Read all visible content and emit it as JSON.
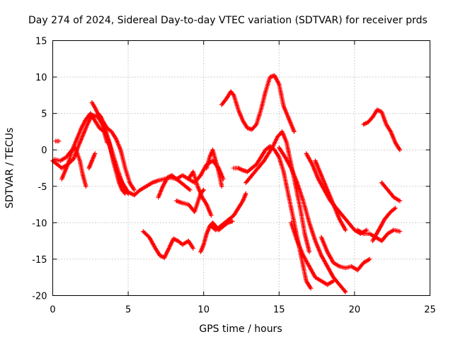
{
  "chart_data": {
    "type": "scatter",
    "title": "Day 274 of 2024, Sidereal Day-to-day VTEC variation (SDTVAR) for receiver prds",
    "xlabel": "GPS time / hours",
    "ylabel": "SDTVAR / TECUs",
    "xlim": [
      0,
      25
    ],
    "ylim": [
      -20,
      15
    ],
    "xticks": [
      0,
      5,
      10,
      15,
      20,
      25
    ],
    "yticks": [
      -20,
      -15,
      -10,
      -5,
      0,
      5,
      10,
      15
    ],
    "xtick_labels": [
      "0",
      "5",
      "10",
      "15",
      "20",
      "25"
    ],
    "ytick_labels": [
      "-20",
      "-15",
      "-10",
      "-5",
      "0",
      "5",
      "10",
      "15"
    ],
    "grid": true,
    "legend": "none",
    "marker": "+",
    "colors": {
      "series": "#ff0000"
    },
    "series": [
      {
        "x": [
          0.0,
          0.3,
          0.6,
          1.0,
          1.4,
          1.7,
          2.0,
          2.3,
          2.6,
          3.0,
          3.3,
          3.6,
          3.9,
          4.2,
          4.5,
          4.8,
          5.0
        ],
        "y": [
          -1.5,
          -2.0,
          -2.5,
          -2.0,
          -1.2,
          0.5,
          2.0,
          3.5,
          4.8,
          4.5,
          3.5,
          2.0,
          0.0,
          -2.0,
          -4.0,
          -5.5,
          -6.0
        ]
      },
      {
        "x": [
          0.1,
          0.5,
          0.9,
          1.2,
          1.5,
          1.8,
          2.0,
          2.2
        ],
        "y": [
          -1.3,
          -1.5,
          -1.0,
          -0.2,
          0.3,
          -1.5,
          -3.5,
          -5.0
        ]
      },
      {
        "x": [
          0.2,
          0.4
        ],
        "y": [
          1.2,
          1.2
        ]
      },
      {
        "x": [
          0.6,
          1.0,
          1.3,
          1.6,
          1.9,
          2.2,
          2.5,
          2.8,
          3.1,
          3.4,
          3.6
        ],
        "y": [
          -4.0,
          -2.0,
          0.0,
          1.5,
          3.0,
          4.2,
          5.0,
          4.0,
          3.0,
          2.5,
          1.0
        ]
      },
      {
        "x": [
          2.6,
          2.8,
          3.1,
          3.4,
          3.7,
          4.0,
          4.3,
          4.6,
          5.0,
          5.4,
          5.8,
          6.2,
          6.6,
          7.0,
          7.4,
          7.8,
          8.2,
          8.6,
          9.0,
          9.4,
          9.8,
          10.2,
          10.6,
          11.0,
          11.3
        ],
        "y": [
          6.5,
          5.8,
          4.5,
          3.0,
          1.0,
          -1.0,
          -3.0,
          -4.5,
          -5.8,
          -6.2,
          -5.5,
          -5.0,
          -4.5,
          -4.2,
          -4.0,
          -3.8,
          -4.0,
          -3.5,
          -4.0,
          -4.5,
          -3.5,
          -2.0,
          -1.5,
          -2.5,
          -4.0
        ]
      },
      {
        "x": [
          3.0,
          3.2,
          3.4,
          3.6,
          3.8,
          4.0,
          4.2,
          4.4,
          4.6,
          4.8
        ],
        "y": [
          5.0,
          4.5,
          3.5,
          2.0,
          0.5,
          -1.5,
          -3.0,
          -4.5,
          -5.5,
          -6.0
        ]
      },
      {
        "x": [
          3.3,
          3.6,
          3.9,
          4.2,
          4.5,
          4.8,
          5.1,
          5.4
        ],
        "y": [
          4.0,
          3.0,
          2.5,
          1.5,
          0.0,
          -2.5,
          -4.5,
          -5.5
        ]
      },
      {
        "x": [
          2.4,
          2.6,
          2.8
        ],
        "y": [
          -2.5,
          -1.5,
          -0.5
        ]
      },
      {
        "x": [
          6.0,
          6.4,
          6.8,
          7.1,
          7.4,
          7.7,
          8.0,
          8.3,
          8.6,
          9.0,
          9.3
        ],
        "y": [
          -11.2,
          -12.0,
          -13.5,
          -14.5,
          -14.8,
          -13.5,
          -12.2,
          -12.5,
          -13.0,
          -12.5,
          -13.5
        ]
      },
      {
        "x": [
          7.0,
          7.3,
          7.6,
          7.9,
          8.2,
          8.5,
          8.8,
          9.1
        ],
        "y": [
          -6.5,
          -5.0,
          -3.8,
          -3.5,
          -4.0,
          -4.5,
          -5.0,
          -5.5
        ]
      },
      {
        "x": [
          8.2,
          8.6,
          9.0,
          9.4,
          9.8,
          10.0
        ],
        "y": [
          -7.0,
          -7.3,
          -7.5,
          -8.5,
          -6.0,
          -5.5
        ]
      },
      {
        "x": [
          9.8,
          10.0,
          10.2,
          10.4,
          10.6,
          10.8,
          11.0,
          11.3,
          11.6,
          11.9
        ],
        "y": [
          -14.0,
          -13.0,
          -11.5,
          -10.5,
          -10.0,
          -10.5,
          -11.0,
          -10.5,
          -10.0,
          -9.8
        ]
      },
      {
        "x": [
          9.0,
          9.3,
          9.6,
          9.9,
          10.2,
          10.5
        ],
        "y": [
          -4.0,
          -3.0,
          -5.0,
          -6.5,
          -7.5,
          -9.0
        ]
      },
      {
        "x": [
          10.2,
          10.4,
          10.6,
          10.8,
          11.0,
          11.2
        ],
        "y": [
          -2.5,
          -1.0,
          0.0,
          -1.5,
          -3.0,
          -5.0
        ]
      },
      {
        "x": [
          10.5,
          10.8,
          11.1,
          11.4,
          11.7,
          12.0,
          12.3,
          12.6,
          12.8
        ],
        "y": [
          -10.5,
          -11.0,
          -10.5,
          -10.0,
          -9.5,
          -9.0,
          -8.0,
          -7.0,
          -6.0
        ]
      },
      {
        "x": [
          11.2,
          11.5,
          11.8,
          12.0,
          12.3,
          12.6,
          12.9,
          13.2,
          13.5,
          13.8,
          14.1,
          14.4,
          14.7,
          15.0,
          15.3,
          15.6,
          16.0
        ],
        "y": [
          6.2,
          7.0,
          8.0,
          7.5,
          5.5,
          4.0,
          3.0,
          2.8,
          3.5,
          5.5,
          8.0,
          10.0,
          10.2,
          9.0,
          6.0,
          4.5,
          2.5
        ]
      },
      {
        "x": [
          12.0,
          12.3,
          12.6,
          12.9,
          13.2,
          13.5,
          13.8,
          14.1,
          14.4,
          14.7,
          15.0,
          15.3,
          15.6,
          15.9,
          16.2,
          16.5,
          16.8,
          17.1
        ],
        "y": [
          -2.5,
          -2.5,
          -2.8,
          -3.0,
          -2.5,
          -2.0,
          -1.0,
          0.0,
          0.5,
          0.0,
          -1.0,
          -3.0,
          -6.0,
          -9.0,
          -12.0,
          -15.0,
          -18.0,
          -19.0
        ]
      },
      {
        "x": [
          12.8,
          13.2,
          13.6,
          14.0,
          14.3,
          14.6,
          14.9,
          15.2,
          15.5,
          15.8,
          16.1,
          16.4,
          16.7,
          17.0
        ],
        "y": [
          -4.5,
          -3.5,
          -2.5,
          -1.5,
          -0.5,
          0.5,
          1.8,
          2.5,
          1.0,
          -2.0,
          -5.0,
          -8.0,
          -11.5,
          -14.0
        ]
      },
      {
        "x": [
          15.0,
          15.4,
          15.8,
          16.2,
          16.6,
          17.0,
          17.4,
          17.8,
          18.2,
          18.6,
          19.0,
          19.4
        ],
        "y": [
          0.3,
          -1.0,
          -2.5,
          -4.5,
          -7.0,
          -10.0,
          -12.5,
          -14.5,
          -16.0,
          -17.5,
          -18.5,
          -19.5
        ]
      },
      {
        "x": [
          15.8,
          16.2,
          16.6,
          17.0,
          17.4,
          17.8,
          18.2,
          18.6
        ],
        "y": [
          -10.0,
          -12.5,
          -14.5,
          -16.0,
          -17.5,
          -18.0,
          -18.5,
          -18.0
        ]
      },
      {
        "x": [
          16.8,
          17.2,
          17.6,
          18.0,
          18.4,
          18.8,
          19.2,
          19.6,
          20.0,
          20.4,
          20.8
        ],
        "y": [
          -0.5,
          -2.0,
          -4.0,
          -5.5,
          -7.0,
          -8.0,
          -9.0,
          -10.0,
          -11.0,
          -11.5,
          -11.0
        ]
      },
      {
        "x": [
          17.4,
          17.8,
          18.2,
          18.6,
          19.0,
          19.4
        ],
        "y": [
          -1.5,
          -3.5,
          -5.5,
          -7.5,
          -9.5,
          -11.0
        ]
      },
      {
        "x": [
          17.8,
          18.2,
          18.6,
          19.0,
          19.4,
          19.8,
          20.2,
          20.6,
          21.0
        ],
        "y": [
          -12.0,
          -14.0,
          -15.5,
          -16.0,
          -16.2,
          -16.0,
          -16.5,
          -15.5,
          -15.0
        ]
      },
      {
        "x": [
          20.6,
          20.9,
          21.2,
          21.5,
          21.8,
          22.1,
          22.4,
          22.7,
          23.0
        ],
        "y": [
          3.5,
          3.8,
          4.5,
          5.5,
          5.2,
          3.5,
          2.5,
          1.0,
          0.0
        ]
      },
      {
        "x": [
          20.2,
          20.6,
          21.0,
          21.4,
          21.8,
          22.2,
          22.6,
          23.0
        ],
        "y": [
          -11.0,
          -11.5,
          -11.5,
          -12.0,
          -12.5,
          -11.5,
          -11.0,
          -11.2
        ]
      },
      {
        "x": [
          21.8,
          22.2,
          22.6,
          23.0
        ],
        "y": [
          -4.5,
          -5.5,
          -6.5,
          -7.0
        ]
      },
      {
        "x": [
          21.2,
          21.6,
          22.0,
          22.4,
          22.7
        ],
        "y": [
          -12.5,
          -11.0,
          -9.5,
          -8.5,
          -8.0
        ]
      }
    ]
  }
}
